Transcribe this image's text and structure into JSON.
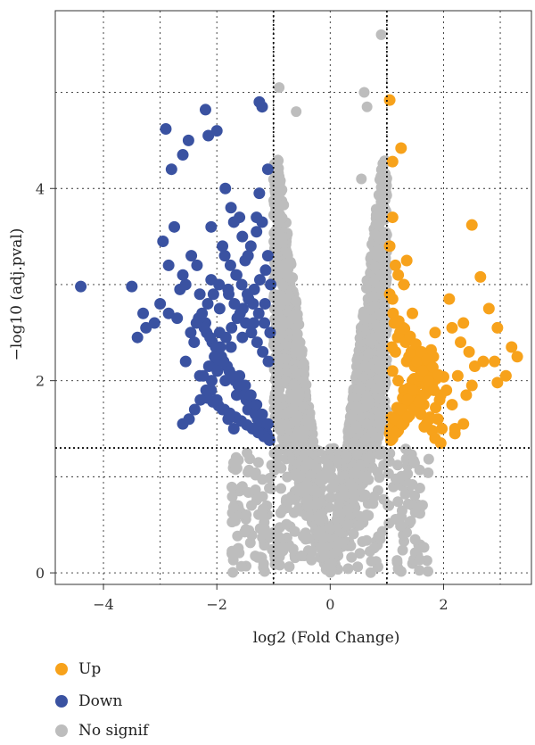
{
  "chart_data": {
    "type": "scatter",
    "xlabel": "log2 (Fold Change)",
    "ylabel": "−log10 (adj.pval)",
    "xlim": [
      -4.85,
      3.55
    ],
    "ylim": [
      -0.12,
      5.85
    ],
    "x_ticks": [
      -4,
      -2,
      0,
      2
    ],
    "x_tick_labels": [
      "−4",
      "−2",
      "0",
      "2"
    ],
    "y_ticks": [
      0,
      2,
      4
    ],
    "y_tick_labels": [
      "0",
      "2",
      "4"
    ],
    "grid": true,
    "thresholds": {
      "fold_change": [
        -1,
        1
      ],
      "adj_pval": 1.3
    },
    "legend": {
      "placement": "bottom-left"
    },
    "series": [
      {
        "name": "Up",
        "color": "#f7a21b",
        "x": [
          1.05,
          1.1,
          1.25,
          1.1,
          1.15,
          1.3,
          1.05,
          1.1,
          1.2,
          1.35,
          1.45,
          1.05,
          1.15,
          1.25,
          1.4,
          1.5,
          1.6,
          1.75,
          1.85,
          2.1,
          2.35,
          2.5,
          2.65,
          2.45,
          2.8,
          2.95,
          3.2,
          3.3,
          3.1,
          2.9,
          2.7,
          2.95,
          2.55,
          2.3,
          2.15,
          2.25,
          2.05,
          2.4,
          2.5,
          1.95,
          2.15,
          1.9,
          2.2,
          1.8,
          1.7,
          1.6,
          1.5,
          1.4,
          1.3,
          1.2,
          1.1,
          1.15,
          1.25,
          1.35,
          1.45,
          1.55,
          1.65,
          1.75,
          1.85,
          1.95,
          1.05,
          1.12,
          1.22,
          1.32,
          1.42,
          1.52,
          1.62,
          1.72,
          1.82,
          1.08,
          1.18,
          1.28,
          1.38,
          1.48,
          1.58,
          1.68,
          1.78,
          1.06,
          1.16,
          1.26,
          1.36,
          1.46,
          1.56,
          1.66,
          1.76,
          1.86,
          1.09,
          1.19,
          1.29,
          1.39,
          1.49,
          1.59,
          1.69,
          1.1,
          1.2,
          1.3,
          1.4,
          1.5,
          1.6,
          1.7,
          1.8,
          2.0,
          1.07,
          1.17,
          1.27,
          1.37,
          1.47,
          1.57,
          1.67,
          1.77,
          1.87,
          1.97,
          2.2,
          2.35,
          1.13,
          1.23,
          1.33,
          1.43,
          1.53,
          1.63,
          1.73,
          1.83,
          1.93,
          1.11,
          1.21,
          1.31,
          1.41,
          1.51,
          1.61,
          1.71,
          1.81,
          1.91
        ],
        "y": [
          4.92,
          4.28,
          4.42,
          3.7,
          3.2,
          3.0,
          3.4,
          2.85,
          3.1,
          3.25,
          2.7,
          2.9,
          2.6,
          2.55,
          2.45,
          2.3,
          2.2,
          2.1,
          2.5,
          2.85,
          2.6,
          3.62,
          3.08,
          2.3,
          2.75,
          2.55,
          2.35,
          2.25,
          2.05,
          2.2,
          2.2,
          1.98,
          2.15,
          2.4,
          2.55,
          2.05,
          1.9,
          1.85,
          1.95,
          1.85,
          1.75,
          1.6,
          1.5,
          1.48,
          1.55,
          1.65,
          1.7,
          1.8,
          1.9,
          2.0,
          2.1,
          2.3,
          2.45,
          2.2,
          2.0,
          1.85,
          1.75,
          1.6,
          1.4,
          1.35,
          1.45,
          1.55,
          1.65,
          1.75,
          1.85,
          1.95,
          2.05,
          2.15,
          2.25,
          1.62,
          1.72,
          1.82,
          1.92,
          2.02,
          2.12,
          2.22,
          2.32,
          1.5,
          1.6,
          1.7,
          1.8,
          1.9,
          2.0,
          1.52,
          1.62,
          1.72,
          2.35,
          2.45,
          2.55,
          2.25,
          2.15,
          2.05,
          1.95,
          1.4,
          1.48,
          1.56,
          1.64,
          1.72,
          1.8,
          1.88,
          1.96,
          2.04,
          1.38,
          1.46,
          1.54,
          1.62,
          1.7,
          1.78,
          1.86,
          1.94,
          2.02,
          1.5,
          1.45,
          1.55,
          2.6,
          2.5,
          2.4,
          2.3,
          2.2,
          2.1,
          2.0,
          1.9,
          1.8,
          2.7,
          2.62,
          2.54,
          2.46,
          2.38,
          2.3,
          2.22,
          2.14,
          2.06
        ]
      },
      {
        "name": "Down",
        "color": "#3a52a1",
        "x": [
          -4.4,
          -3.5,
          -3.3,
          -3.1,
          -2.9,
          -2.95,
          -2.8,
          -2.85,
          -2.6,
          -2.5,
          -2.55,
          -2.2,
          -2.15,
          -2.0,
          -1.85,
          -1.75,
          -1.6,
          -1.7,
          -1.25,
          -1.2,
          -1.1,
          -1.25,
          -1.3,
          -1.55,
          -1.45,
          -1.9,
          -2.1,
          -2.35,
          -2.45,
          -2.65,
          -2.75,
          -2.6,
          -3.4,
          -3.25,
          -3.0,
          -2.85,
          -2.7,
          -2.3,
          -2.1,
          -1.95,
          -1.8,
          -1.65,
          -1.5,
          -1.4,
          -1.3,
          -1.2,
          -1.1,
          -1.05,
          -1.15,
          -1.35,
          -1.55,
          -1.75,
          -1.95,
          -2.2,
          -2.4,
          -2.55,
          -2.3,
          -2.05,
          -1.85,
          -1.65,
          -1.45,
          -1.25,
          -1.08,
          -1.18,
          -1.28,
          -1.38,
          -1.48,
          -1.58,
          -1.68,
          -1.78,
          -1.88,
          -1.98,
          -2.08,
          -2.18,
          -2.28,
          -1.12,
          -1.22,
          -1.32,
          -1.42,
          -1.52,
          -1.62,
          -1.72,
          -1.82,
          -1.92,
          -2.02,
          -2.12,
          -2.22,
          -2.32,
          -1.06,
          -1.16,
          -1.26,
          -1.36,
          -1.46,
          -1.56,
          -1.66,
          -1.76,
          -1.86,
          -1.96,
          -2.06,
          -2.16,
          -2.26,
          -2.36,
          -2.46,
          -1.1,
          -1.2,
          -1.3,
          -1.4,
          -1.5,
          -1.6,
          -1.7,
          -1.8,
          -1.9,
          -2.0,
          -2.1,
          -1.14,
          -1.24,
          -1.34,
          -1.44,
          -1.54,
          -1.64,
          -1.74,
          -1.84,
          -1.94,
          -2.04,
          -2.14,
          -2.24,
          -2.6,
          -1.07,
          -1.17,
          -1.27,
          -1.37,
          -1.47,
          -1.57,
          -1.67,
          -1.77,
          -1.87,
          -1.97,
          -2.07,
          -2.17,
          -1.09,
          -1.19,
          -1.29,
          -1.39,
          -1.49,
          -1.59,
          -1.69,
          -1.79,
          -1.89,
          -1.99,
          -2.09,
          -2.19,
          -2.29,
          -2.39,
          -2.49
        ],
        "y": [
          2.98,
          2.98,
          2.7,
          2.6,
          4.62,
          3.45,
          4.2,
          3.2,
          4.35,
          4.5,
          3.0,
          4.82,
          4.55,
          4.6,
          4.0,
          3.8,
          3.7,
          3.65,
          4.9,
          4.85,
          4.2,
          3.95,
          3.7,
          3.5,
          3.3,
          3.4,
          3.6,
          3.2,
          3.3,
          2.95,
          3.6,
          3.1,
          2.45,
          2.55,
          2.8,
          2.7,
          2.65,
          2.9,
          3.05,
          2.75,
          2.95,
          3.1,
          3.25,
          3.4,
          3.55,
          3.65,
          3.3,
          3.0,
          2.8,
          2.6,
          2.45,
          2.35,
          2.5,
          2.6,
          2.4,
          2.2,
          2.05,
          2.15,
          2.0,
          1.85,
          1.7,
          1.6,
          1.4,
          1.5,
          1.6,
          1.7,
          1.8,
          1.9,
          2.0,
          2.1,
          2.2,
          2.3,
          2.4,
          2.5,
          2.6,
          1.45,
          1.55,
          1.65,
          1.75,
          1.85,
          1.95,
          2.05,
          2.15,
          2.25,
          2.35,
          2.45,
          2.55,
          2.65,
          2.5,
          2.6,
          2.7,
          2.8,
          2.9,
          3.0,
          3.1,
          3.2,
          3.3,
          3.0,
          2.9,
          2.8,
          2.7,
          2.6,
          2.5,
          1.55,
          1.65,
          1.75,
          1.85,
          1.95,
          2.05,
          1.5,
          1.6,
          1.7,
          1.8,
          1.9,
          3.15,
          3.05,
          2.95,
          2.85,
          2.75,
          2.65,
          2.55,
          2.45,
          2.35,
          2.25,
          2.15,
          2.05,
          1.55,
          1.38,
          1.42,
          1.46,
          1.5,
          1.54,
          1.58,
          1.62,
          1.66,
          1.7,
          1.74,
          1.78,
          1.82,
          2.2,
          2.3,
          2.4,
          2.5,
          2.6,
          2.7,
          2.8,
          2.9,
          2.2,
          2.1,
          2.0,
          1.9,
          1.8,
          1.7,
          1.6
        ]
      },
      {
        "name": "No signif",
        "color": "#bdbdbd",
        "x": [],
        "y": []
      }
    ]
  }
}
